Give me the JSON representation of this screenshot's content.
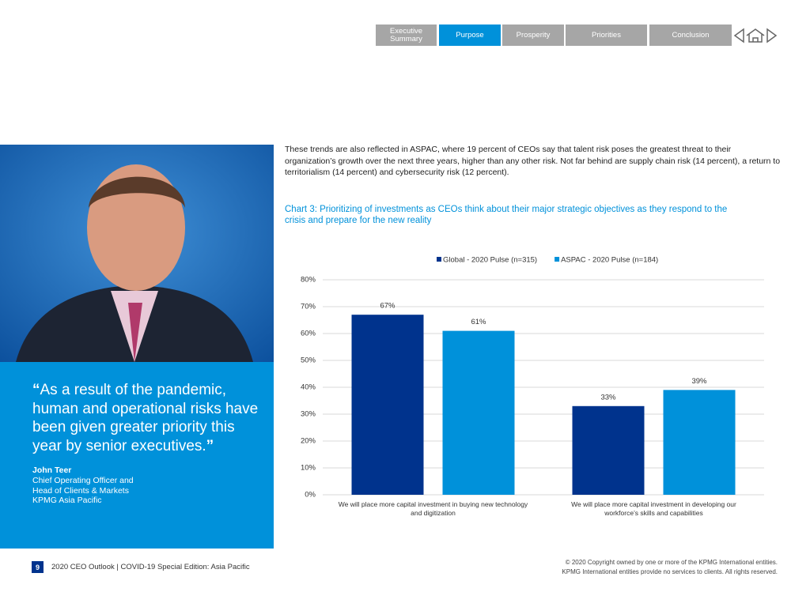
{
  "nav": {
    "tabs": [
      "Executive Summary",
      "Purpose",
      "Prosperity",
      "Priorities",
      "Conclusion"
    ]
  },
  "body": {
    "paragraph": "These trends are also reflected in ASPAC, where 19 percent of CEOs say that talent risk poses the greatest threat to their organization’s growth over the next three years, higher than any other risk. Not far behind are supply chain risk (14 percent), a return to territorialism (14 percent) and cybersecurity risk (12 percent)."
  },
  "quote": {
    "open": "“",
    "text": "As a result of the pandemic, human and operational risks have been given greater priority this year by senior executives.",
    "close": "”",
    "name": "John Teer",
    "role": [
      "Chief Operating Officer and",
      "Head of Clients & Markets",
      "KPMG Asia Pacific"
    ]
  },
  "chart_data": {
    "type": "bar",
    "title": "Chart 3: Prioritizing of investments as CEOs think about their major strategic objectives as they respond to the crisis and prepare for the new reality",
    "categories": [
      "We will place more capital investment in buying new technology and digitization",
      "We will place more capital investment in developing our workforce’s skills and capabilities"
    ],
    "series": [
      {
        "name": "Global - 2020 Pulse (n=315)",
        "color": "#00338d",
        "values": [
          67,
          33
        ],
        "value_labels": [
          "67%",
          "33%"
        ]
      },
      {
        "name": "ASPAC - 2020 Pulse (n=184)",
        "color": "#0091da",
        "values": [
          61,
          39
        ],
        "value_labels": [
          "61%",
          "39%"
        ]
      }
    ],
    "ylim": [
      0,
      80
    ],
    "yticks": [
      {
        "value": 0,
        "label": "0%"
      },
      {
        "value": 10,
        "label": "10%"
      },
      {
        "value": 20,
        "label": "20%"
      },
      {
        "value": 30,
        "label": "30%"
      },
      {
        "value": 40,
        "label": "40%"
      },
      {
        "value": 50,
        "label": "50%"
      },
      {
        "value": 60,
        "label": "60%"
      },
      {
        "value": 70,
        "label": "70%"
      },
      {
        "value": 80,
        "label": "80%"
      }
    ],
    "grid": true,
    "legend": "top"
  },
  "footer": {
    "page": "9",
    "publication": "2020 CEO Outlook | COVID-19 Special Edition: Asia Pacific",
    "copyright": [
      "© 2020 Copyright owned by one or more of the KPMG International entities.",
      "KPMG International entities provide no services to clients. All rights reserved."
    ]
  }
}
